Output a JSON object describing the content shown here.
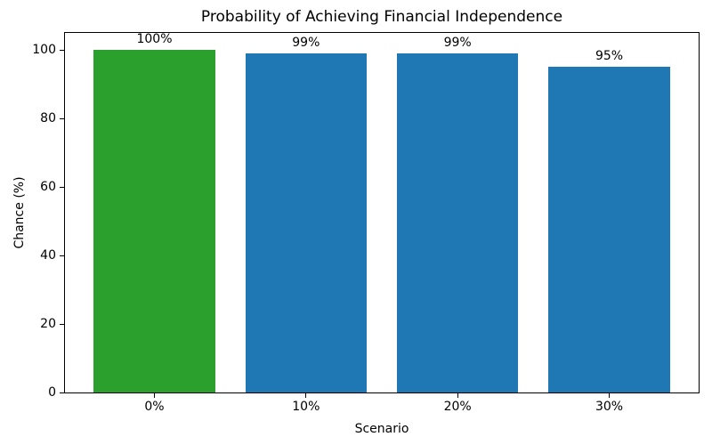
{
  "chart_data": {
    "type": "bar",
    "title": "Probability of Achieving Financial Independence",
    "xlabel": "Scenario",
    "ylabel": "Chance (%)",
    "categories": [
      "0%",
      "10%",
      "20%",
      "30%"
    ],
    "values": [
      100,
      99,
      99,
      95
    ],
    "bar_labels": [
      "100%",
      "99%",
      "99%",
      "95%"
    ],
    "bar_colors": [
      "#2ca02c",
      "#1f77b4",
      "#1f77b4",
      "#1f77b4"
    ],
    "ylim": [
      0,
      105
    ],
    "xlim": [
      -0.59,
      3.59
    ],
    "yticks": [
      0,
      20,
      40,
      60,
      80,
      100
    ],
    "bar_width_fraction": 0.8,
    "grid": false,
    "legend_position": "none",
    "axis_color": "#000000",
    "text_color": "#000000",
    "background_color": "#ffffff"
  }
}
